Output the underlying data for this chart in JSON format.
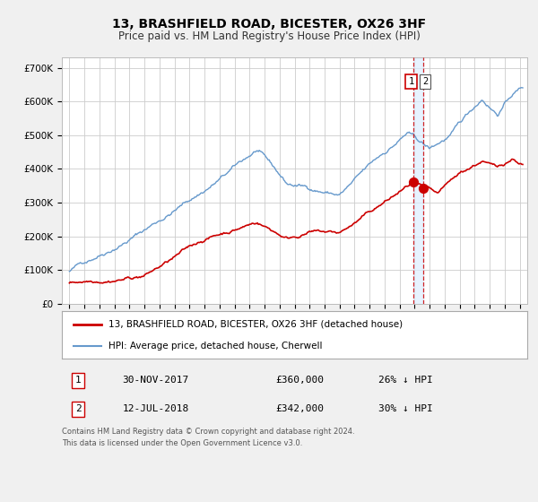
{
  "title": "13, BRASHFIELD ROAD, BICESTER, OX26 3HF",
  "subtitle": "Price paid vs. HM Land Registry's House Price Index (HPI)",
  "legend_label_red": "13, BRASHFIELD ROAD, BICESTER, OX26 3HF (detached house)",
  "legend_label_blue": "HPI: Average price, detached house, Cherwell",
  "footer1": "Contains HM Land Registry data © Crown copyright and database right 2024.",
  "footer2": "This data is licensed under the Open Government Licence v3.0.",
  "annotation1_num": "1",
  "annotation1_date": "30-NOV-2017",
  "annotation1_price": "£360,000",
  "annotation1_hpi": "26% ↓ HPI",
  "annotation2_num": "2",
  "annotation2_date": "12-JUL-2018",
  "annotation2_price": "£342,000",
  "annotation2_hpi": "30% ↓ HPI",
  "vline1_x": 2017.917,
  "vline2_x": 2018.542,
  "point1_x": 2017.917,
  "point1_y": 360000,
  "point2_x": 2018.542,
  "point2_y": 342000,
  "color_red": "#cc0000",
  "color_blue": "#6699cc",
  "color_vline": "#cc0000",
  "color_vband": "#ddeeff",
  "ylim": [
    0,
    730000
  ],
  "xlim_left": 1994.5,
  "xlim_right": 2025.5,
  "background_color": "#f0f0f0",
  "plot_bg_color": "#ffffff",
  "grid_color": "#cccccc",
  "seed": 42
}
